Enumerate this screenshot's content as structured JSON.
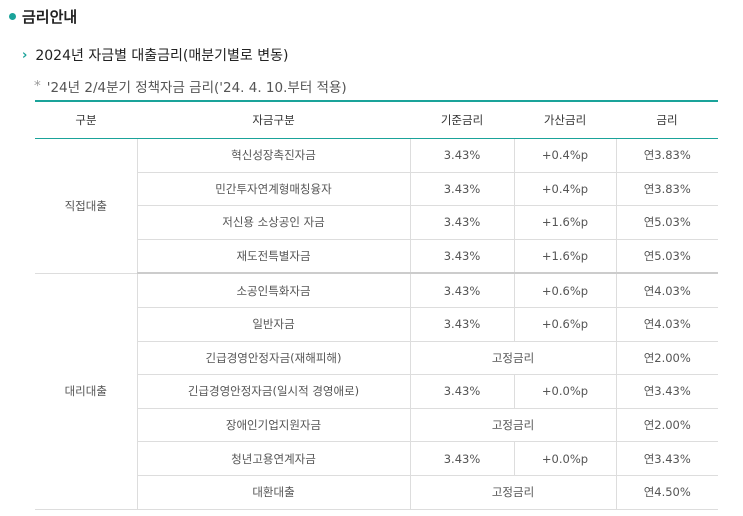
{
  "header": {
    "title": "금리안내",
    "subtitle": "2024년 자금별 대출금리(매분기별로 변동)",
    "note": "'24년 2/4분기 정책자금 금리('24. 4. 10.부터 적용)"
  },
  "table": {
    "headers": [
      "구분",
      "자금구분",
      "기준금리",
      "가산금리",
      "금리"
    ],
    "groups": [
      {
        "label": "직접대출",
        "rows": [
          {
            "name": "혁신성장촉진자금",
            "base": "3.43%",
            "add": "+0.4%p",
            "rate": "연3.83%"
          },
          {
            "name": "민간투자연계형매칭융자",
            "base": "3.43%",
            "add": "+0.4%p",
            "rate": "연3.83%"
          },
          {
            "name": "저신용 소상공인 자금",
            "base": "3.43%",
            "add": "+1.6%p",
            "rate": "연5.03%"
          },
          {
            "name": "재도전특별자금",
            "base": "3.43%",
            "add": "+1.6%p",
            "rate": "연5.03%"
          }
        ]
      },
      {
        "label": "대리대출",
        "rows": [
          {
            "name": "소공인특화자금",
            "base": "3.43%",
            "add": "+0.6%p",
            "rate": "연4.03%"
          },
          {
            "name": "일반자금",
            "base": "3.43%",
            "add": "+0.6%p",
            "rate": "연4.03%"
          },
          {
            "name": "긴급경영안정자금(재해피해)",
            "fixed": "고정금리",
            "rate": "연2.00%"
          },
          {
            "name": "긴급경영안정자금(일시적 경영애로)",
            "base": "3.43%",
            "add": "+0.0%p",
            "rate": "연3.43%"
          },
          {
            "name": "장애인기업지원자금",
            "fixed": "고정금리",
            "rate": "연2.00%"
          },
          {
            "name": "청년고용연계자금",
            "base": "3.43%",
            "add": "+0.0%p",
            "rate": "연3.43%"
          },
          {
            "name": "대환대출",
            "fixed": "고정금리",
            "rate": "연4.50%"
          }
        ]
      }
    ]
  }
}
